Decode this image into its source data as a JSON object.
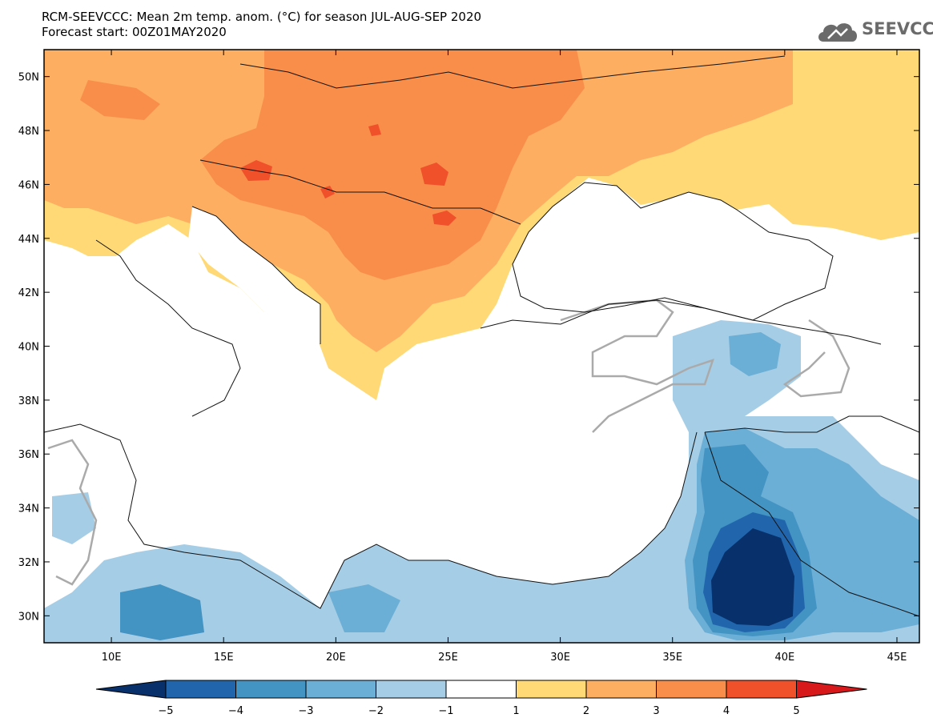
{
  "title": {
    "line1": "RCM-SEEVCCC: Mean 2m temp. anom. (°C) for season JUL-AUG-SEP 2020",
    "line2": "Forecast start: 00Z01MAY2020"
  },
  "logo": {
    "text": "SEEVCCC",
    "icon": "cloud-icon"
  },
  "map": {
    "lon_range": [
      7,
      46
    ],
    "lat_range": [
      29,
      51
    ],
    "lon_ticks": [
      {
        "value": 10,
        "label": "10E"
      },
      {
        "value": 15,
        "label": "15E"
      },
      {
        "value": 20,
        "label": "20E"
      },
      {
        "value": 25,
        "label": "25E"
      },
      {
        "value": 30,
        "label": "30E"
      },
      {
        "value": 35,
        "label": "35E"
      },
      {
        "value": 40,
        "label": "40E"
      },
      {
        "value": 45,
        "label": "45E"
      }
    ],
    "lat_ticks": [
      {
        "value": 30,
        "label": "30N"
      },
      {
        "value": 32,
        "label": "32N"
      },
      {
        "value": 34,
        "label": "34N"
      },
      {
        "value": 36,
        "label": "36N"
      },
      {
        "value": 38,
        "label": "38N"
      },
      {
        "value": 40,
        "label": "40N"
      },
      {
        "value": 42,
        "label": "42N"
      },
      {
        "value": 44,
        "label": "44N"
      },
      {
        "value": 46,
        "label": "46N"
      },
      {
        "value": 48,
        "label": "48N"
      },
      {
        "value": 50,
        "label": "50N"
      }
    ]
  },
  "colorbar": {
    "levels": [
      "-5",
      "-4",
      "-3",
      "-2",
      "-1",
      "1",
      "2",
      "3",
      "4",
      "5"
    ],
    "colors": [
      "#08306b",
      "#2166ac",
      "#4393c3",
      "#6baed6",
      "#a6cde6",
      "#ffffff",
      "#fed976",
      "#fdae61",
      "#f98e4a",
      "#f0502a",
      "#d7191c"
    ]
  }
}
